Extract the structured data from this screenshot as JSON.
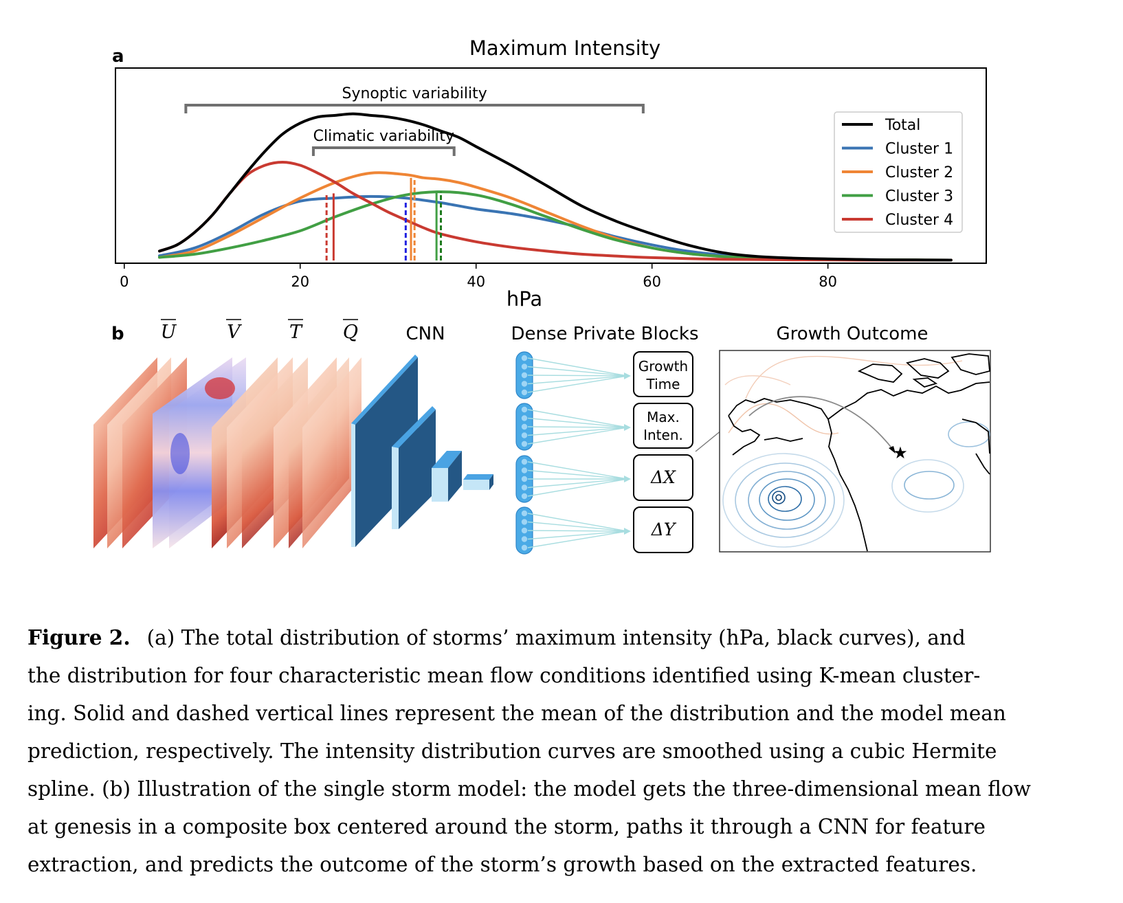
{
  "panel_a": {
    "label": "a",
    "chart_data": {
      "type": "line",
      "title": "Maximum Intensity",
      "xlabel": "hPa",
      "ylabel": "",
      "xlim": [
        -1,
        98
      ],
      "ylim": [
        0,
        1.0
      ],
      "xticks": [
        0,
        20,
        40,
        60,
        80
      ],
      "y_ticks_shown": false,
      "grid": false,
      "legend_position": "top-right",
      "series": [
        {
          "name": "Total",
          "color": "#000000",
          "x": [
            4,
            6,
            8,
            10,
            12,
            14,
            16,
            18,
            20,
            22,
            24,
            26,
            28,
            30,
            32,
            34,
            36,
            38,
            40,
            44,
            48,
            52,
            56,
            60,
            64,
            68,
            72,
            76,
            80,
            85,
            90,
            94
          ],
          "y": [
            0.06,
            0.1,
            0.18,
            0.29,
            0.43,
            0.57,
            0.7,
            0.81,
            0.88,
            0.92,
            0.93,
            0.94,
            0.93,
            0.92,
            0.9,
            0.87,
            0.83,
            0.79,
            0.73,
            0.61,
            0.48,
            0.35,
            0.25,
            0.17,
            0.1,
            0.05,
            0.025,
            0.015,
            0.01,
            0.005,
            0.003,
            0.002
          ]
        },
        {
          "name": "Cluster 1",
          "color": "#3a74b3",
          "x": [
            4,
            8,
            12,
            16,
            20,
            24,
            28,
            32,
            36,
            40,
            44,
            48,
            52,
            56,
            60,
            64,
            68,
            72,
            76,
            80,
            85,
            90,
            94
          ],
          "y": [
            0.03,
            0.08,
            0.18,
            0.3,
            0.38,
            0.4,
            0.41,
            0.4,
            0.37,
            0.33,
            0.3,
            0.26,
            0.21,
            0.15,
            0.1,
            0.06,
            0.035,
            0.02,
            0.012,
            0.008,
            0.005,
            0.003,
            0.002
          ]
        },
        {
          "name": "Cluster 2",
          "color": "#ef8535",
          "x": [
            4,
            8,
            12,
            16,
            20,
            24,
            28,
            32,
            34,
            36,
            38,
            40,
            44,
            48,
            52,
            56,
            60,
            64,
            68,
            72,
            76,
            80,
            85,
            90,
            94
          ],
          "y": [
            0.02,
            0.06,
            0.16,
            0.28,
            0.4,
            0.5,
            0.56,
            0.55,
            0.53,
            0.52,
            0.5,
            0.47,
            0.4,
            0.31,
            0.22,
            0.14,
            0.08,
            0.045,
            0.025,
            0.015,
            0.01,
            0.007,
            0.004,
            0.003,
            0.002
          ]
        },
        {
          "name": "Cluster 3",
          "color": "#419f44",
          "x": [
            4,
            8,
            12,
            16,
            20,
            24,
            28,
            32,
            36,
            40,
            44,
            48,
            52,
            56,
            60,
            64,
            68,
            72,
            76,
            80,
            85,
            90,
            94
          ],
          "y": [
            0.02,
            0.04,
            0.08,
            0.13,
            0.19,
            0.28,
            0.36,
            0.42,
            0.44,
            0.42,
            0.36,
            0.28,
            0.2,
            0.13,
            0.08,
            0.045,
            0.025,
            0.015,
            0.01,
            0.007,
            0.004,
            0.003,
            0.002
          ]
        },
        {
          "name": "Cluster 4",
          "color": "#c93a31",
          "x": [
            4,
            6,
            8,
            10,
            12,
            14,
            16,
            18,
            20,
            22,
            24,
            26,
            28,
            30,
            32,
            34,
            36,
            40,
            44,
            48,
            52,
            56,
            60,
            64,
            68,
            72,
            76,
            80,
            85,
            90,
            94
          ],
          "y": [
            0.06,
            0.1,
            0.18,
            0.29,
            0.43,
            0.55,
            0.61,
            0.63,
            0.61,
            0.56,
            0.5,
            0.43,
            0.37,
            0.31,
            0.26,
            0.21,
            0.17,
            0.12,
            0.085,
            0.06,
            0.04,
            0.028,
            0.018,
            0.012,
            0.008,
            0.006,
            0.004,
            0.003,
            0.002,
            0.002,
            0.002
          ]
        }
      ],
      "vertical_lines": [
        {
          "series": "Cluster 4",
          "x": 23.0,
          "height": 0.43,
          "style": "dashed",
          "color": "#c93a31"
        },
        {
          "series": "Cluster 4",
          "x": 23.8,
          "height": 0.43,
          "style": "solid",
          "color": "#c93a31"
        },
        {
          "series": "Cluster 1",
          "x": 32.0,
          "height": 0.37,
          "style": "dashed",
          "color": "#1f1fe0"
        },
        {
          "series": "Cluster 2",
          "x": 32.6,
          "height": 0.53,
          "style": "solid",
          "color": "#ef8535"
        },
        {
          "series": "Cluster 2",
          "x": 33.0,
          "height": 0.53,
          "style": "dashed",
          "color": "#ef8535"
        },
        {
          "series": "Cluster 3",
          "x": 35.5,
          "height": 0.44,
          "style": "solid",
          "color": "#419f44"
        },
        {
          "series": "Cluster 3",
          "x": 36.0,
          "height": 0.44,
          "style": "dashed",
          "color": "#1e7a1e"
        }
      ],
      "brackets": [
        {
          "label": "Synoptic variability",
          "x_start": 7,
          "x_end": 59,
          "y": 1.0
        },
        {
          "label": "Climatic variability",
          "x_start": 21.5,
          "x_end": 37.5,
          "y": 0.72
        }
      ]
    }
  },
  "panel_b": {
    "label": "b",
    "inputs": [
      "U",
      "V",
      "T",
      "Q"
    ],
    "cnn_label": "CNN",
    "dense_label": "Dense Private Blocks",
    "outcome_label": "Growth Outcome",
    "outputs": [
      {
        "line1": "Growth",
        "line2": "Time"
      },
      {
        "line1": "Max.",
        "line2": "Inten."
      },
      {
        "line1": "ΔX",
        "line2": ""
      },
      {
        "line1": "ΔY",
        "line2": ""
      }
    ],
    "colors": {
      "cnn_dark": "#245785",
      "cnn_light": "#4aa3e3",
      "cnn_pale": "#c5e6f7",
      "node": "#4aaae6",
      "connector": "#a8dde0"
    }
  },
  "caption": {
    "label": "Figure 2.",
    "lines": [
      "(a) The total distribution of storms’ maximum intensity (hPa, black curves), and",
      "the distribution for four characteristic mean flow conditions identified using K-mean cluster-",
      "ing. Solid and dashed vertical lines represent the mean of the distribution and the model mean",
      "prediction, respectively. The intensity distribution curves are smoothed using a cubic Hermite",
      "spline. (b) Illustration of the single storm model: the model gets the three-dimensional mean flow",
      "at genesis in a composite box centered around the storm, paths it through a CNN for feature",
      "extraction, and predicts the outcome of the storm’s growth based on the extracted features."
    ]
  }
}
